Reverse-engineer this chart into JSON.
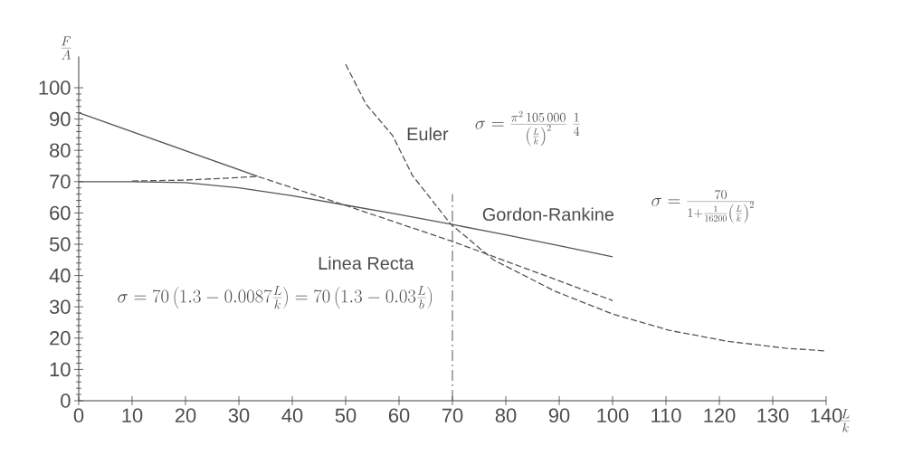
{
  "chart_data": {
    "type": "line",
    "xlabel": "\\frac{L}{k}",
    "ylabel": "\\frac{F}{A}",
    "xlim": [
      0,
      140
    ],
    "ylim": [
      0,
      110
    ],
    "xticks": [
      0,
      10,
      20,
      30,
      40,
      50,
      60,
      70,
      80,
      90,
      100,
      110,
      120,
      130,
      140
    ],
    "yticks": [
      0,
      10,
      20,
      30,
      40,
      50,
      60,
      70,
      80,
      90,
      100
    ],
    "series": [
      {
        "type": "line",
        "color": "#555555",
        "line_style": "dashed",
        "x": [
          50,
          53.8,
          58.8,
          62.5,
          69.7,
          77.7,
          89.2,
          100,
          110.6,
          121.5,
          132.3,
          140
        ],
        "values": [
          107.5,
          94.8,
          84.7,
          72,
          56.4,
          45,
          35,
          27.7,
          22.5,
          19,
          16.8,
          15.9
        ]
      },
      {
        "type": "line",
        "color": "#555555",
        "line_style": "solid",
        "x": [
          0,
          10,
          20,
          30,
          40,
          50,
          60,
          70,
          80,
          90,
          100
        ],
        "values": [
          70,
          70,
          69.7,
          68,
          65.5,
          62.5,
          59.5,
          56.3,
          53,
          49.5,
          46
        ]
      },
      {
        "type": "line",
        "color": "#555555",
        "line_style": "solid",
        "x": [
          0,
          33.5
        ],
        "values": [
          92,
          71.7
        ]
      },
      {
        "type": "line",
        "color": "#555555",
        "line_style": "dashed",
        "x": [
          10,
          20,
          30,
          33.5,
          50,
          70,
          100
        ],
        "values": [
          70.2,
          70.5,
          71.3,
          71.7,
          62.4,
          50.9,
          32
        ]
      }
    ],
    "ref_lines": [
      {
        "axis": "x",
        "value": 70,
        "color": "#555555",
        "line_style": "dashed"
      }
    ],
    "annotations": [
      {
        "text": "Euler",
        "x": 58.8,
        "y": 84.7
      },
      {
        "text": "Gordon-Rankine",
        "x": 74,
        "y": 56
      },
      "Linea Recta",
      "\\sigma=\\frac{\\pi^{2}\\,105\\,000}{\\left(\\frac{L}{k}\\right)^{2}}\\;\\frac{1}{4}",
      "\\sigma=\\frac{70}{1+\\frac{1}{16200}\\left(\\frac{L}{k}\\right)^{2}}",
      "\\sigma=70\\left(1.3-0.0087\\frac{L}{k}\\right)=70\\left(1.3-0.03\\frac{L}{b}\\right)"
    ]
  }
}
